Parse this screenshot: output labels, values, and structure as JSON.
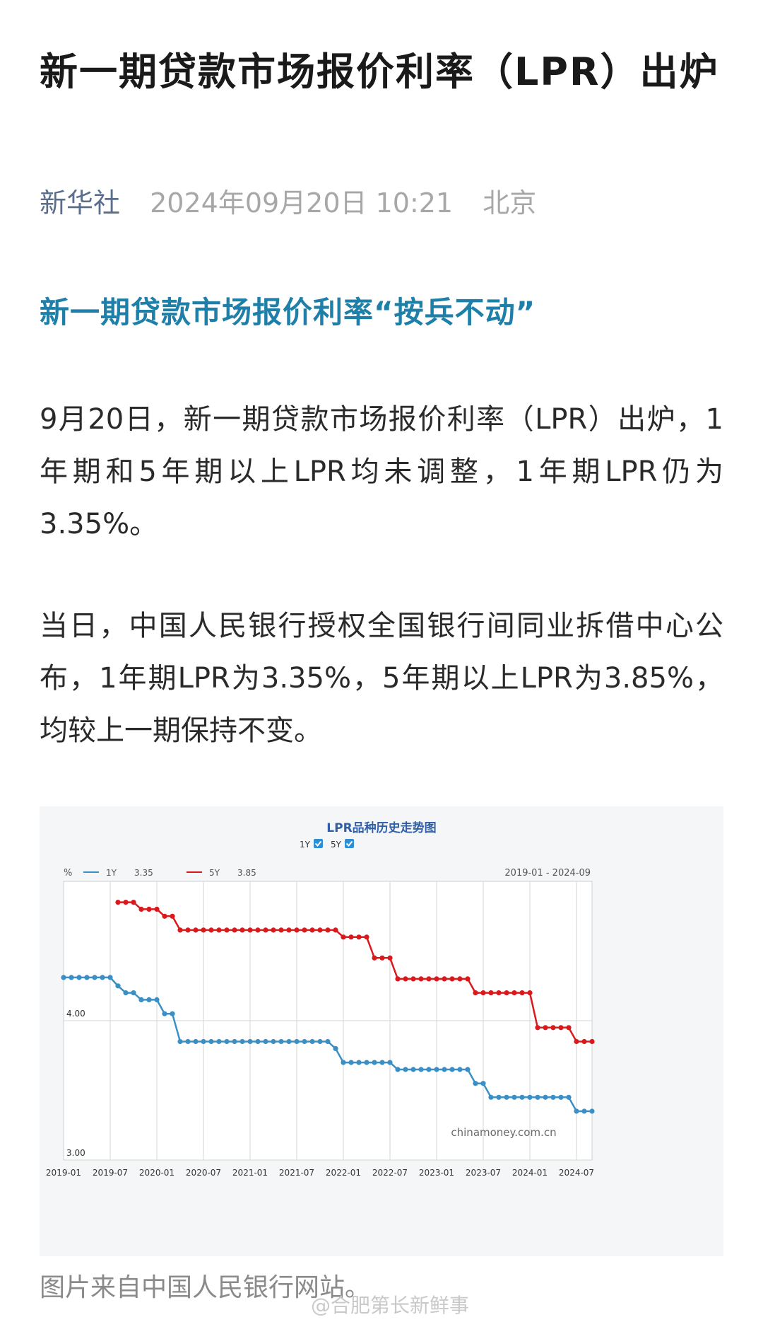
{
  "article": {
    "title": "新一期贷款市场报价利率（LPR）出炉",
    "source": "新华社",
    "datetime": "2024年09月20日 10:21",
    "location": "北京",
    "subheading": "新一期贷款市场报价利率“按兵不动”",
    "paragraph1": "9月20日，新一期贷款市场报价利率（LPR）出炉，1年期和5年期以上LPR均未调整，1年期LPR仍为3.35%。",
    "paragraph2": "当日，中国人民银行授权全国银行间同业拆借中心公布，1年期LPR为3.35%，5年期以上LPR为3.85%，均较上一期保持不变。",
    "caption": "图片来自中国人民银行网站。",
    "watermark": "@合肥第长新鲜事"
  },
  "chart_data": {
    "type": "line",
    "title": "LPR品种历史走势图",
    "toggles": [
      {
        "label": "1Y",
        "checked": true
      },
      {
        "label": "5Y",
        "checked": true
      }
    ],
    "y_unit": "%",
    "date_range": "2019-01 - 2024-09",
    "ylim": [
      3.0,
      5.0
    ],
    "y_tick_labels": [
      "3.00",
      "4.00"
    ],
    "x_tick_labels": [
      "2019-01",
      "2019-07",
      "2020-01",
      "2020-07",
      "2021-01",
      "2021-07",
      "2022-01",
      "2022-07",
      "2023-01",
      "2023-07",
      "2024-01",
      "2024-07"
    ],
    "watermark": "chinamoney.com.cn",
    "grid": true,
    "legend_placement": "top-left",
    "colors": {
      "1Y": "#3b8fc4",
      "5Y": "#d9191c",
      "grid": "#d5d5d5"
    },
    "series": [
      {
        "name": "1Y",
        "latest": "3.35",
        "points": [
          [
            "2019-01",
            4.31
          ],
          [
            "2019-02",
            4.31
          ],
          [
            "2019-03",
            4.31
          ],
          [
            "2019-04",
            4.31
          ],
          [
            "2019-05",
            4.31
          ],
          [
            "2019-06",
            4.31
          ],
          [
            "2019-07",
            4.31
          ],
          [
            "2019-08",
            4.25
          ],
          [
            "2019-09",
            4.2
          ],
          [
            "2019-10",
            4.2
          ],
          [
            "2019-11",
            4.15
          ],
          [
            "2019-12",
            4.15
          ],
          [
            "2020-01",
            4.15
          ],
          [
            "2020-02",
            4.05
          ],
          [
            "2020-03",
            4.05
          ],
          [
            "2020-04",
            3.85
          ],
          [
            "2020-05",
            3.85
          ],
          [
            "2020-06",
            3.85
          ],
          [
            "2020-07",
            3.85
          ],
          [
            "2020-08",
            3.85
          ],
          [
            "2020-09",
            3.85
          ],
          [
            "2020-10",
            3.85
          ],
          [
            "2020-11",
            3.85
          ],
          [
            "2020-12",
            3.85
          ],
          [
            "2021-01",
            3.85
          ],
          [
            "2021-02",
            3.85
          ],
          [
            "2021-03",
            3.85
          ],
          [
            "2021-04",
            3.85
          ],
          [
            "2021-05",
            3.85
          ],
          [
            "2021-06",
            3.85
          ],
          [
            "2021-07",
            3.85
          ],
          [
            "2021-08",
            3.85
          ],
          [
            "2021-09",
            3.85
          ],
          [
            "2021-10",
            3.85
          ],
          [
            "2021-11",
            3.85
          ],
          [
            "2021-12",
            3.8
          ],
          [
            "2022-01",
            3.7
          ],
          [
            "2022-02",
            3.7
          ],
          [
            "2022-03",
            3.7
          ],
          [
            "2022-04",
            3.7
          ],
          [
            "2022-05",
            3.7
          ],
          [
            "2022-06",
            3.7
          ],
          [
            "2022-07",
            3.7
          ],
          [
            "2022-08",
            3.65
          ],
          [
            "2022-09",
            3.65
          ],
          [
            "2022-10",
            3.65
          ],
          [
            "2022-11",
            3.65
          ],
          [
            "2022-12",
            3.65
          ],
          [
            "2023-01",
            3.65
          ],
          [
            "2023-02",
            3.65
          ],
          [
            "2023-03",
            3.65
          ],
          [
            "2023-04",
            3.65
          ],
          [
            "2023-05",
            3.65
          ],
          [
            "2023-06",
            3.55
          ],
          [
            "2023-07",
            3.55
          ],
          [
            "2023-08",
            3.45
          ],
          [
            "2023-09",
            3.45
          ],
          [
            "2023-10",
            3.45
          ],
          [
            "2023-11",
            3.45
          ],
          [
            "2023-12",
            3.45
          ],
          [
            "2024-01",
            3.45
          ],
          [
            "2024-02",
            3.45
          ],
          [
            "2024-03",
            3.45
          ],
          [
            "2024-04",
            3.45
          ],
          [
            "2024-05",
            3.45
          ],
          [
            "2024-06",
            3.45
          ],
          [
            "2024-07",
            3.35
          ],
          [
            "2024-08",
            3.35
          ],
          [
            "2024-09",
            3.35
          ]
        ]
      },
      {
        "name": "5Y",
        "latest": "3.85",
        "points": [
          [
            "2019-08",
            4.85
          ],
          [
            "2019-09",
            4.85
          ],
          [
            "2019-10",
            4.85
          ],
          [
            "2019-11",
            4.8
          ],
          [
            "2019-12",
            4.8
          ],
          [
            "2020-01",
            4.8
          ],
          [
            "2020-02",
            4.75
          ],
          [
            "2020-03",
            4.75
          ],
          [
            "2020-04",
            4.65
          ],
          [
            "2020-05",
            4.65
          ],
          [
            "2020-06",
            4.65
          ],
          [
            "2020-07",
            4.65
          ],
          [
            "2020-08",
            4.65
          ],
          [
            "2020-09",
            4.65
          ],
          [
            "2020-10",
            4.65
          ],
          [
            "2020-11",
            4.65
          ],
          [
            "2020-12",
            4.65
          ],
          [
            "2021-01",
            4.65
          ],
          [
            "2021-02",
            4.65
          ],
          [
            "2021-03",
            4.65
          ],
          [
            "2021-04",
            4.65
          ],
          [
            "2021-05",
            4.65
          ],
          [
            "2021-06",
            4.65
          ],
          [
            "2021-07",
            4.65
          ],
          [
            "2021-08",
            4.65
          ],
          [
            "2021-09",
            4.65
          ],
          [
            "2021-10",
            4.65
          ],
          [
            "2021-11",
            4.65
          ],
          [
            "2021-12",
            4.65
          ],
          [
            "2022-01",
            4.6
          ],
          [
            "2022-02",
            4.6
          ],
          [
            "2022-03",
            4.6
          ],
          [
            "2022-04",
            4.6
          ],
          [
            "2022-05",
            4.45
          ],
          [
            "2022-06",
            4.45
          ],
          [
            "2022-07",
            4.45
          ],
          [
            "2022-08",
            4.3
          ],
          [
            "2022-09",
            4.3
          ],
          [
            "2022-10",
            4.3
          ],
          [
            "2022-11",
            4.3
          ],
          [
            "2022-12",
            4.3
          ],
          [
            "2023-01",
            4.3
          ],
          [
            "2023-02",
            4.3
          ],
          [
            "2023-03",
            4.3
          ],
          [
            "2023-04",
            4.3
          ],
          [
            "2023-05",
            4.3
          ],
          [
            "2023-06",
            4.2
          ],
          [
            "2023-07",
            4.2
          ],
          [
            "2023-08",
            4.2
          ],
          [
            "2023-09",
            4.2
          ],
          [
            "2023-10",
            4.2
          ],
          [
            "2023-11",
            4.2
          ],
          [
            "2023-12",
            4.2
          ],
          [
            "2024-01",
            4.2
          ],
          [
            "2024-02",
            3.95
          ],
          [
            "2024-03",
            3.95
          ],
          [
            "2024-04",
            3.95
          ],
          [
            "2024-05",
            3.95
          ],
          [
            "2024-06",
            3.95
          ],
          [
            "2024-07",
            3.85
          ],
          [
            "2024-08",
            3.85
          ],
          [
            "2024-09",
            3.85
          ]
        ]
      }
    ]
  }
}
